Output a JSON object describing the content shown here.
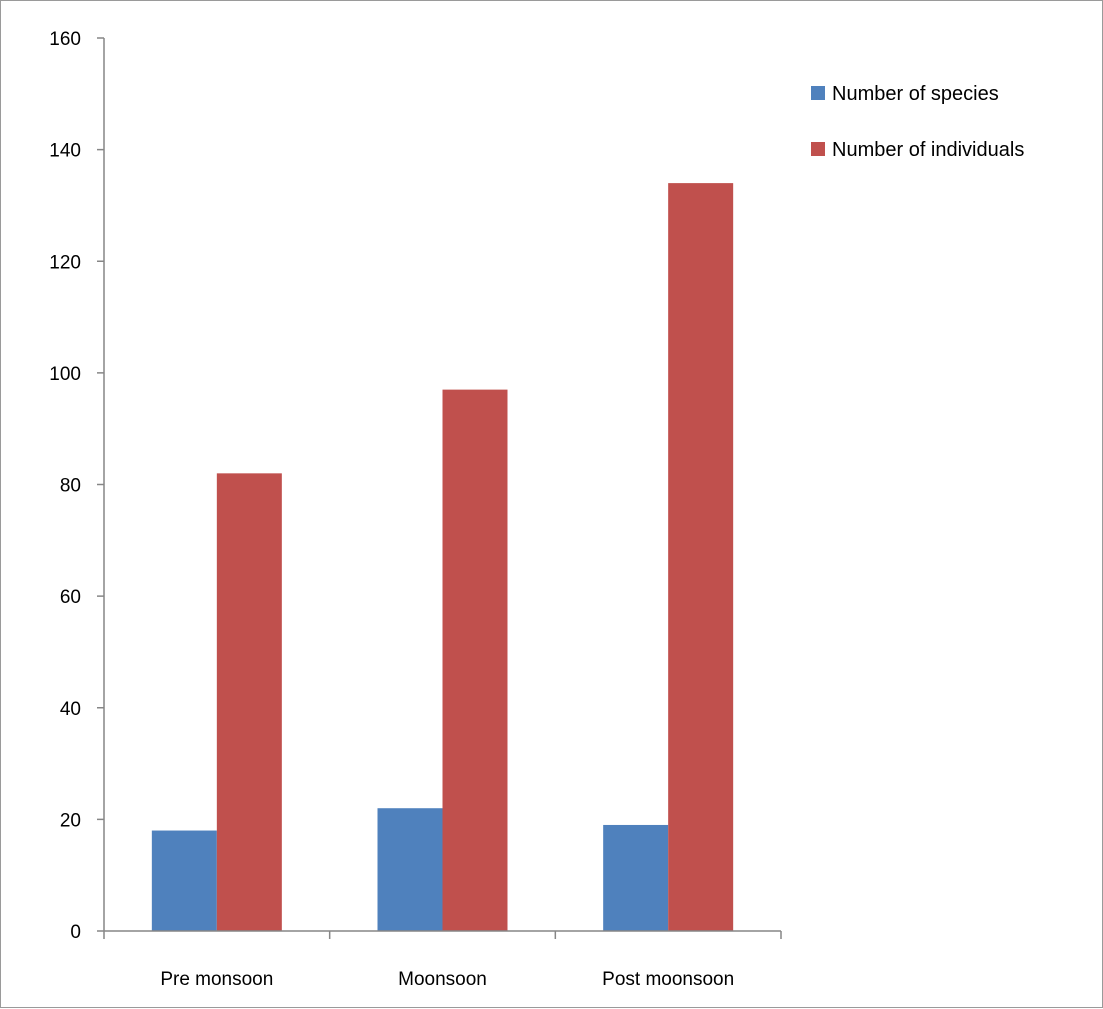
{
  "chart_data": {
    "type": "bar",
    "title": "",
    "xlabel": "",
    "ylabel": "",
    "categories": [
      "Pre monsoon",
      "Moonsoon",
      "Post moonsoon"
    ],
    "series": [
      {
        "name": "Number of species",
        "values": [
          18,
          22,
          19
        ],
        "color": "#4f81bd"
      },
      {
        "name": "Number of individuals",
        "values": [
          82,
          97,
          134
        ],
        "color": "#c0504d"
      }
    ],
    "ylim": [
      0,
      160
    ],
    "yticks": [
      0,
      20,
      40,
      60,
      80,
      100,
      120,
      140,
      160
    ],
    "grid": false,
    "legend_position": "top-right"
  }
}
